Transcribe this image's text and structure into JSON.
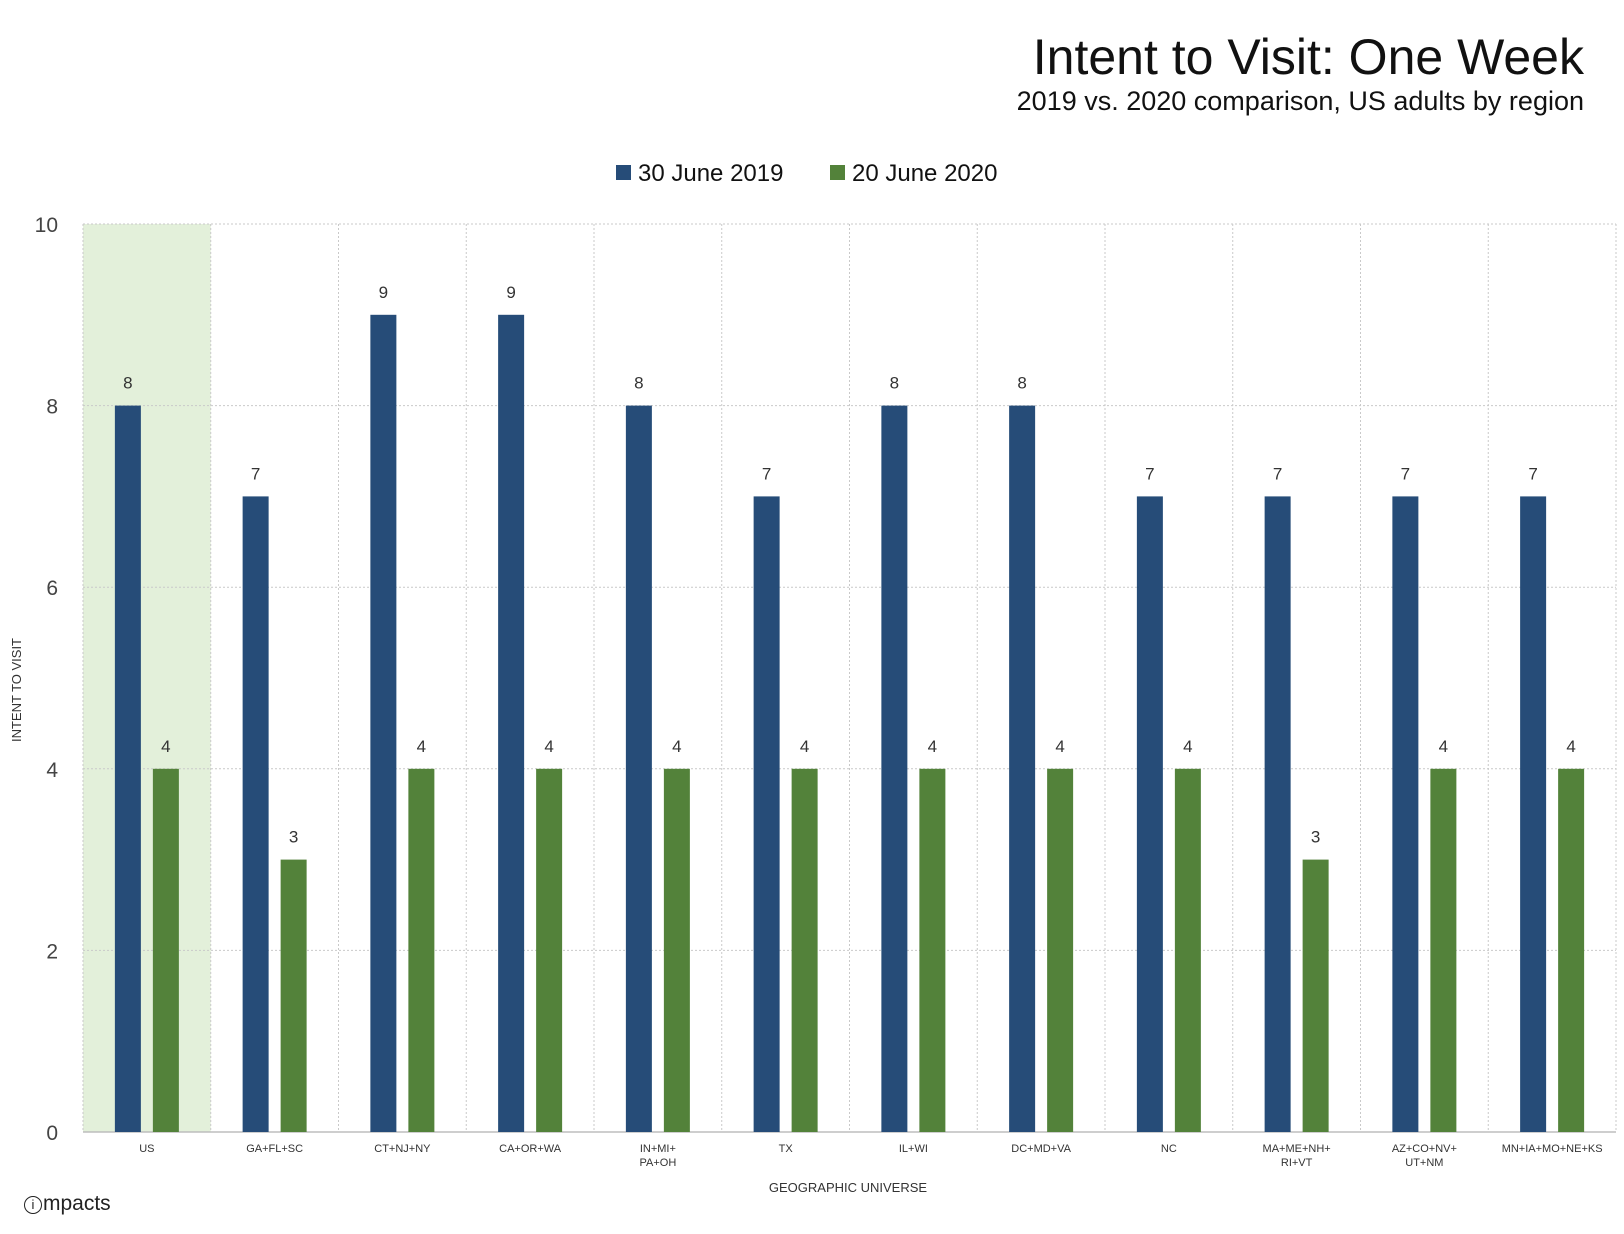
{
  "chart_data": {
    "type": "bar",
    "title": "Intent to Visit: One Week",
    "subtitle": "2019 vs. 2020 comparison, US adults by region",
    "xlabel": "GEOGRAPHIC UNIVERSE",
    "ylabel": "INTENT TO VISIT",
    "ylim": [
      0,
      10
    ],
    "yticks": [
      0,
      2,
      4,
      6,
      8,
      10
    ],
    "grid": true,
    "legend_position": "top-center",
    "highlighted_category": "US",
    "categories": [
      "US",
      "GA+FL+SC",
      "CT+NJ+NY",
      "CA+OR+WA",
      "IN+MI+ PA+OH",
      "TX",
      "IL+WI",
      "DC+MD+VA",
      "NC",
      "MA+ME+NH+ RI+VT",
      "AZ+CO+NV+ UT+NM",
      "MN+IA+MO+NE+KS"
    ],
    "series": [
      {
        "name": "30 June 2019",
        "color": "#264c78",
        "values": [
          8,
          7,
          9,
          9,
          8,
          7,
          8,
          8,
          7,
          7,
          7,
          7
        ]
      },
      {
        "name": "20 June 2020",
        "color": "#53823a",
        "values": [
          4,
          3,
          4,
          4,
          4,
          4,
          4,
          4,
          4,
          3,
          4,
          4
        ]
      }
    ]
  },
  "colors": {
    "highlight_fill": "#e3f0da",
    "grid": "#c9c9c9"
  },
  "brand": {
    "icon": "info-circle-icon",
    "mark": "i",
    "name": "mpacts"
  }
}
